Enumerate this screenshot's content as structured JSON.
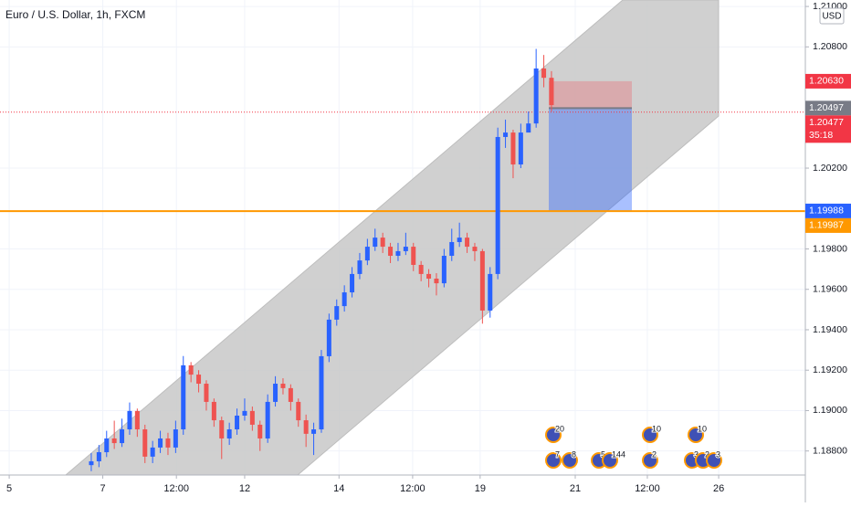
{
  "chart_data": {
    "type": "candlestick",
    "title": "Euro / U.S. Dollar, 1h, FXCM",
    "currency": "USD",
    "up_color": "#2962ff",
    "down_color": "#ef5350",
    "grid": true,
    "open": [
      1.1873,
      1.18749,
      1.18794,
      1.18862,
      1.18839,
      1.18907,
      1.18998,
      1.18907,
      1.18772,
      1.18817,
      1.18862,
      1.18817,
      1.18907,
      1.19224,
      1.19178,
      1.19133,
      1.19043,
      1.18952,
      1.18862,
      1.18907,
      1.18975,
      1.18998,
      1.1893,
      1.18862,
      1.19043,
      1.19133,
      1.19111,
      1.19043,
      1.18952,
      1.18885,
      1.18907,
      1.19269,
      1.1945,
      1.19517,
      1.19585,
      1.19676,
      1.19743,
      1.19811,
      1.19856,
      1.19811,
      1.19766,
      1.19789,
      1.19811,
      1.19721,
      1.19676,
      1.19653,
      1.1963,
      1.19766,
      1.19834,
      1.19856,
      1.19811,
      1.19789,
      1.19495,
      1.19676,
      1.20354,
      1.20376,
      1.20218,
      1.20376,
      1.20421,
      1.20693,
      1.20647
    ],
    "high": [
      1.1879,
      1.1883,
      1.189,
      1.1895,
      1.1896,
      1.1904,
      1.1901,
      1.1893,
      1.1885,
      1.189,
      1.1889,
      1.1895,
      1.1927,
      1.1924,
      1.192,
      1.1915,
      1.1906,
      1.1897,
      1.1894,
      1.1901,
      1.1906,
      1.1902,
      1.1895,
      1.1908,
      1.1917,
      1.1916,
      1.1913,
      1.1906,
      1.1898,
      1.1894,
      1.193,
      1.1948,
      1.1955,
      1.1962,
      1.1971,
      1.1978,
      1.1985,
      1.199,
      1.1988,
      1.1983,
      1.1983,
      1.1988,
      1.1983,
      1.1974,
      1.197,
      1.1968,
      1.198,
      1.199,
      1.1993,
      1.1988,
      1.1983,
      1.198,
      1.1971,
      1.204,
      1.2044,
      1.2039,
      1.2042,
      1.2048,
      1.2079,
      1.2076,
      1.2068
    ],
    "low": [
      1.187,
      1.1872,
      1.1877,
      1.1881,
      1.1882,
      1.1888,
      1.1887,
      1.1874,
      1.1874,
      1.1879,
      1.1878,
      1.1879,
      1.1888,
      1.1914,
      1.1909,
      1.19,
      1.1892,
      1.1876,
      1.1883,
      1.1888,
      1.1895,
      1.189,
      1.188,
      1.1884,
      1.1902,
      1.1908,
      1.19,
      1.1892,
      1.1882,
      1.1878,
      1.1889,
      1.1924,
      1.1942,
      1.1949,
      1.1956,
      1.1965,
      1.1972,
      1.1979,
      1.1978,
      1.1973,
      1.1974,
      1.1977,
      1.1969,
      1.1964,
      1.1961,
      1.1957,
      1.1961,
      1.1974,
      1.1981,
      1.1978,
      1.1974,
      1.1943,
      1.1946,
      1.1965,
      1.203,
      1.2015,
      1.202,
      1.2038,
      1.204,
      1.206,
      1.2048
    ],
    "close": [
      1.18749,
      1.18794,
      1.18862,
      1.18839,
      1.18907,
      1.18998,
      1.18907,
      1.18772,
      1.18817,
      1.18862,
      1.18817,
      1.18907,
      1.19224,
      1.19178,
      1.19133,
      1.19043,
      1.18952,
      1.18862,
      1.18907,
      1.18975,
      1.18998,
      1.1893,
      1.18862,
      1.19043,
      1.19133,
      1.19111,
      1.19043,
      1.18952,
      1.18885,
      1.18907,
      1.19269,
      1.1945,
      1.19517,
      1.19585,
      1.19676,
      1.19743,
      1.19811,
      1.19856,
      1.19811,
      1.19766,
      1.19789,
      1.19811,
      1.19721,
      1.19676,
      1.19653,
      1.1963,
      1.19766,
      1.19834,
      1.19856,
      1.19811,
      1.19789,
      1.19495,
      1.19676,
      1.20354,
      1.20376,
      1.20218,
      1.20376,
      1.20421,
      1.20693,
      1.20647,
      1.20512
    ],
    "xlim": [
      -11.9,
      93.1
    ],
    "xticks": [
      {
        "value": -10.7,
        "label": "5"
      },
      {
        "value": 1.5,
        "label": "7"
      },
      {
        "value": 11.1,
        "label": "12:00"
      },
      {
        "value": 20,
        "label": "12"
      },
      {
        "value": 32.3,
        "label": "14"
      },
      {
        "value": 41.9,
        "label": "12:00"
      },
      {
        "value": 50.7,
        "label": "19"
      },
      {
        "value": 63.1,
        "label": "21"
      },
      {
        "value": 72.5,
        "label": "12:00"
      },
      {
        "value": 81.8,
        "label": "26"
      }
    ],
    "ylim": [
      1.18681,
      1.21032
    ],
    "yticks": [
      {
        "value": 1.21,
        "label": "1.21000"
      },
      {
        "value": 1.208,
        "label": "1.20800"
      },
      {
        "value": 1.202,
        "label": "1.20200"
      },
      {
        "value": 1.198,
        "label": "1.19800"
      },
      {
        "value": 1.196,
        "label": "1.19600"
      },
      {
        "value": 1.194,
        "label": "1.19400"
      },
      {
        "value": 1.192,
        "label": "1.19200"
      },
      {
        "value": 1.19,
        "label": "1.19000"
      },
      {
        "value": 1.188,
        "label": "1.18800"
      }
    ],
    "price_markers": [
      {
        "value": 1.2063,
        "label": "1.20630",
        "color": "#f23645"
      },
      {
        "value": 1.20497,
        "label": "1.20497",
        "color": "#787b86"
      },
      {
        "value": 1.20477,
        "label": "1.20477",
        "sub": "35:18",
        "color": "#f23645"
      },
      {
        "value": 1.19988,
        "label": "1.19988",
        "color": "#2962ff"
      },
      {
        "value": 1.19987,
        "label": "1.19987",
        "color": "#ff9800"
      }
    ],
    "events": [
      "20",
      "7",
      "8",
      "5",
      "144",
      "10",
      "2",
      "10",
      "3",
      "2",
      "3"
    ]
  }
}
